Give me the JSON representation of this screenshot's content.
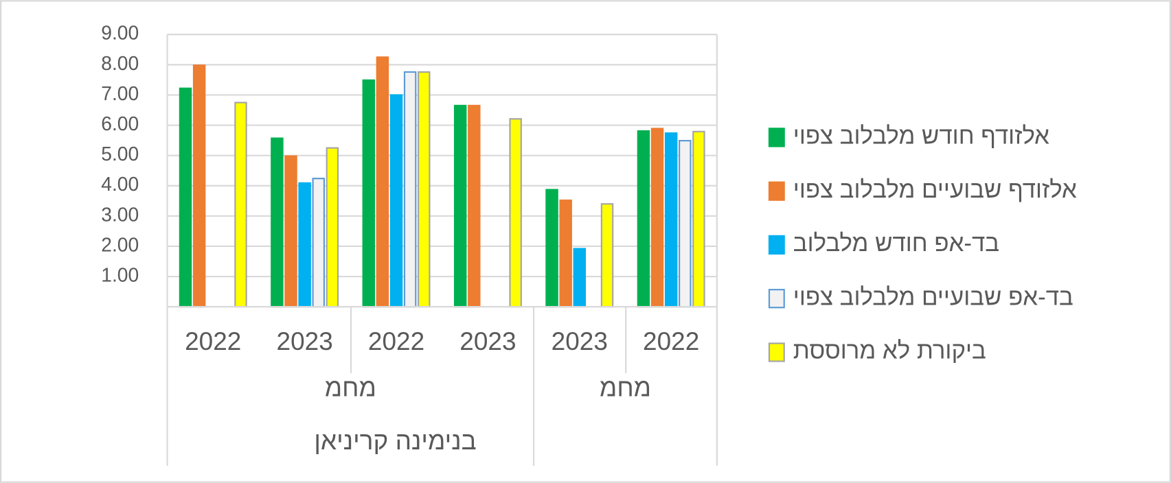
{
  "chart_data": {
    "type": "bar",
    "categories": [
      "2022",
      "2023",
      "2022",
      "2023",
      "2023",
      "2022"
    ],
    "category_groups": [
      {
        "label": "מחמ",
        "count": 4
      },
      {
        "label": "מחמ",
        "count": 2
      }
    ],
    "category_supergroups": [
      {
        "label": "בנימינה קריניאן",
        "count": 4
      }
    ],
    "series": [
      {
        "name": "אלזודף חודש מלבלוב צפוי",
        "color": "#00b050",
        "edgecolor": "#00b050",
        "values": [
          7.22,
          5.57,
          7.49,
          6.65,
          3.87,
          5.81
        ]
      },
      {
        "name": "אלזודף שבועיים מלבלוב צפוי",
        "color": "#ed7d31",
        "edgecolor": "#ed7d31",
        "values": [
          7.98,
          4.98,
          8.25,
          6.65,
          3.52,
          5.89
        ]
      },
      {
        "name": "בד-אפ חודש מלבלוב",
        "color": "#00b0f0",
        "edgecolor": "#00b0f0",
        "values": [
          null,
          4.09,
          7.0,
          null,
          1.92,
          5.74
        ]
      },
      {
        "name": "בד-אפ שבועיים מלבלוב צפוי",
        "color": "#f2f2f2",
        "edgecolor": "#5b9bd5",
        "values": [
          null,
          4.24,
          7.76,
          null,
          null,
          5.49
        ]
      },
      {
        "name": "ביקורת לא מרוססת",
        "color": "#ffff00",
        "edgecolor": "#a5a5a5",
        "values": [
          6.75,
          5.25,
          7.76,
          6.21,
          3.4,
          5.79
        ]
      }
    ],
    "ylim": [
      0,
      9
    ],
    "yticks": [
      {
        "value": 1,
        "label": "1.00"
      },
      {
        "value": 2,
        "label": "2.00"
      },
      {
        "value": 3,
        "label": "3.00"
      },
      {
        "value": 4,
        "label": "4.00"
      },
      {
        "value": 5,
        "label": "5.00"
      },
      {
        "value": 6,
        "label": "6.00"
      },
      {
        "value": 7,
        "label": "7.00"
      },
      {
        "value": 8,
        "label": "8.00"
      },
      {
        "value": 9,
        "label": "9.00"
      }
    ],
    "grid": true,
    "legend": "right"
  }
}
